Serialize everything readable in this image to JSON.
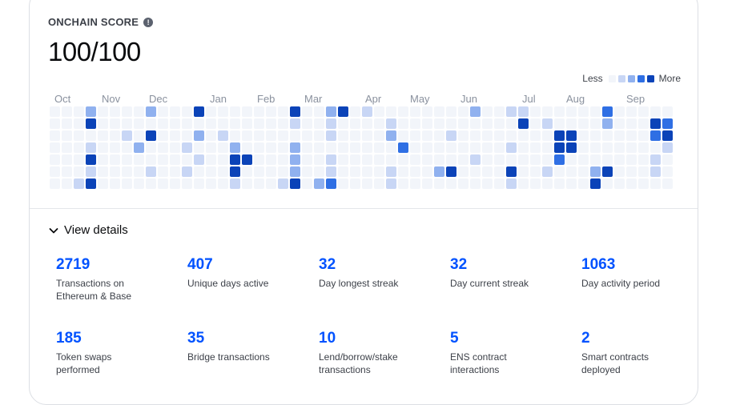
{
  "score_card": {
    "title": "ONCHAIN SCORE",
    "info_icon": "info-icon",
    "score": "100/100"
  },
  "legend": {
    "less": "Less",
    "more": "More",
    "levels": [
      "#f2f5fa",
      "#c8d6f5",
      "#90b1ef",
      "#2f6fe4",
      "#0b43b8"
    ]
  },
  "months": [
    "Oct",
    "Nov",
    "Dec",
    "Jan",
    "Feb",
    "Mar",
    "Apr",
    "May",
    "Jun",
    "Jul",
    "Aug",
    "Sep"
  ],
  "activity": {
    "weeks": 53,
    "days_per_week": 7,
    "active_cells": [
      [
        3,
        0,
        2
      ],
      [
        3,
        1,
        4
      ],
      [
        3,
        3,
        1
      ],
      [
        3,
        4,
        4
      ],
      [
        3,
        5,
        1
      ],
      [
        3,
        6,
        4
      ],
      [
        2,
        6,
        1
      ],
      [
        8,
        0,
        2
      ],
      [
        8,
        2,
        4
      ],
      [
        8,
        5,
        1
      ],
      [
        7,
        3,
        2
      ],
      [
        6,
        2,
        1
      ],
      [
        12,
        0,
        4
      ],
      [
        12,
        2,
        2
      ],
      [
        11,
        3,
        1
      ],
      [
        11,
        5,
        1
      ],
      [
        12,
        4,
        1
      ],
      [
        15,
        3,
        2
      ],
      [
        15,
        4,
        4
      ],
      [
        15,
        5,
        4
      ],
      [
        15,
        6,
        1
      ],
      [
        16,
        4,
        4
      ],
      [
        14,
        2,
        1
      ],
      [
        20,
        0,
        4
      ],
      [
        20,
        1,
        1
      ],
      [
        20,
        3,
        2
      ],
      [
        20,
        4,
        2
      ],
      [
        20,
        5,
        2
      ],
      [
        20,
        6,
        4
      ],
      [
        19,
        6,
        1
      ],
      [
        23,
        0,
        2
      ],
      [
        24,
        0,
        4
      ],
      [
        23,
        1,
        1
      ],
      [
        23,
        2,
        1
      ],
      [
        23,
        4,
        1
      ],
      [
        23,
        5,
        1
      ],
      [
        23,
        6,
        3
      ],
      [
        22,
        6,
        2
      ],
      [
        26,
        0,
        1
      ],
      [
        28,
        1,
        1
      ],
      [
        28,
        2,
        2
      ],
      [
        29,
        3,
        3
      ],
      [
        28,
        5,
        1
      ],
      [
        28,
        6,
        1
      ],
      [
        32,
        5,
        2
      ],
      [
        33,
        5,
        4
      ],
      [
        33,
        2,
        1
      ],
      [
        35,
        0,
        2
      ],
      [
        35,
        4,
        1
      ],
      [
        38,
        0,
        1
      ],
      [
        39,
        0,
        1
      ],
      [
        39,
        1,
        4
      ],
      [
        38,
        3,
        1
      ],
      [
        38,
        5,
        4
      ],
      [
        38,
        6,
        1
      ],
      [
        42,
        2,
        4
      ],
      [
        43,
        2,
        4
      ],
      [
        42,
        3,
        4
      ],
      [
        43,
        3,
        4
      ],
      [
        42,
        4,
        3
      ],
      [
        41,
        1,
        1
      ],
      [
        41,
        5,
        1
      ],
      [
        46,
        0,
        3
      ],
      [
        46,
        1,
        2
      ],
      [
        45,
        5,
        2
      ],
      [
        46,
        5,
        4
      ],
      [
        45,
        6,
        4
      ],
      [
        50,
        1,
        4
      ],
      [
        51,
        1,
        3
      ],
      [
        50,
        2,
        3
      ],
      [
        51,
        2,
        4
      ],
      [
        51,
        3,
        1
      ],
      [
        50,
        4,
        1
      ],
      [
        50,
        5,
        1
      ]
    ]
  },
  "details": {
    "toggle_label": "View details",
    "stats": [
      {
        "value": "2719",
        "label": "Transactions on Ethereum & Base"
      },
      {
        "value": "407",
        "label": "Unique days active"
      },
      {
        "value": "32",
        "label": "Day longest streak"
      },
      {
        "value": "32",
        "label": "Day current streak"
      },
      {
        "value": "1063",
        "label": "Day activity period"
      },
      {
        "value": "185",
        "label": "Token swaps performed"
      },
      {
        "value": "35",
        "label": "Bridge transactions"
      },
      {
        "value": "10",
        "label": "Lend/borrow/stake transactions"
      },
      {
        "value": "5",
        "label": "ENS contract interactions"
      },
      {
        "value": "2",
        "label": "Smart contracts deployed"
      }
    ]
  }
}
